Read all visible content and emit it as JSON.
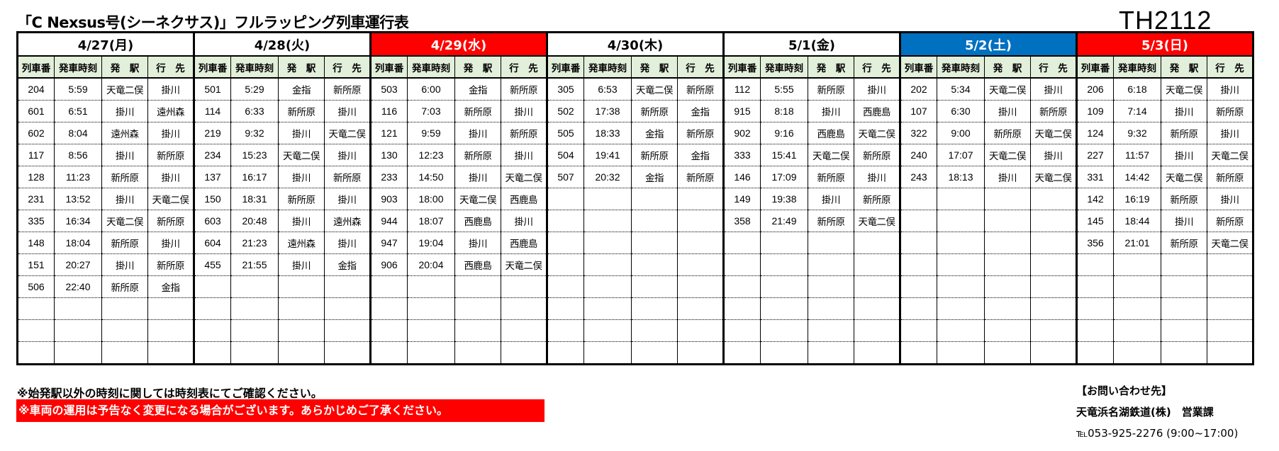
{
  "title": "「C Nexsus号(シーネクサス)」フルラッピング列車運行表",
  "code": "TH2112",
  "columns": [
    "列車番",
    "発車時刻",
    "発　駅",
    "行　先"
  ],
  "days": [
    {
      "label": "4/27(月)",
      "bg": "#ffffff",
      "fg": "#000000",
      "rows": [
        [
          "204",
          "5:59",
          "天竜二俣",
          "掛川"
        ],
        [
          "601",
          "6:51",
          "掛川",
          "遠州森"
        ],
        [
          "602",
          "8:04",
          "遠州森",
          "掛川"
        ],
        [
          "117",
          "8:56",
          "掛川",
          "新所原"
        ],
        [
          "128",
          "11:23",
          "新所原",
          "掛川"
        ],
        [
          "231",
          "13:52",
          "掛川",
          "天竜二俣"
        ],
        [
          "335",
          "16:34",
          "天竜二俣",
          "新所原"
        ],
        [
          "148",
          "18:04",
          "新所原",
          "掛川"
        ],
        [
          "151",
          "20:27",
          "掛川",
          "新所原"
        ],
        [
          "506",
          "22:40",
          "新所原",
          "金指"
        ]
      ]
    },
    {
      "label": "4/28(火)",
      "bg": "#ffffff",
      "fg": "#000000",
      "rows": [
        [
          "501",
          "5:29",
          "金指",
          "新所原"
        ],
        [
          "114",
          "6:33",
          "新所原",
          "掛川"
        ],
        [
          "219",
          "9:32",
          "掛川",
          "天竜二俣"
        ],
        [
          "234",
          "15:23",
          "天竜二俣",
          "掛川"
        ],
        [
          "137",
          "16:17",
          "掛川",
          "新所原"
        ],
        [
          "150",
          "18:31",
          "新所原",
          "掛川"
        ],
        [
          "603",
          "20:48",
          "掛川",
          "遠州森"
        ],
        [
          "604",
          "21:23",
          "遠州森",
          "掛川"
        ],
        [
          "455",
          "21:55",
          "掛川",
          "金指"
        ]
      ]
    },
    {
      "label": "4/29(水)",
      "bg": "#ff0000",
      "fg": "#ffffff",
      "rows": [
        [
          "503",
          "6:00",
          "金指",
          "新所原"
        ],
        [
          "116",
          "7:03",
          "新所原",
          "掛川"
        ],
        [
          "121",
          "9:59",
          "掛川",
          "新所原"
        ],
        [
          "130",
          "12:23",
          "新所原",
          "掛川"
        ],
        [
          "233",
          "14:50",
          "掛川",
          "天竜二俣"
        ],
        [
          "903",
          "18:00",
          "天竜二俣",
          "西鹿島"
        ],
        [
          "944",
          "18:07",
          "西鹿島",
          "掛川"
        ],
        [
          "947",
          "19:04",
          "掛川",
          "西鹿島"
        ],
        [
          "906",
          "20:04",
          "西鹿島",
          "天竜二俣"
        ]
      ]
    },
    {
      "label": "4/30(木)",
      "bg": "#ffffff",
      "fg": "#000000",
      "rows": [
        [
          "305",
          "6:53",
          "天竜二俣",
          "新所原"
        ],
        [
          "502",
          "17:38",
          "新所原",
          "金指"
        ],
        [
          "505",
          "18:33",
          "金指",
          "新所原"
        ],
        [
          "504",
          "19:41",
          "新所原",
          "金指"
        ],
        [
          "507",
          "20:32",
          "金指",
          "新所原"
        ]
      ]
    },
    {
      "label": "5/1(金)",
      "bg": "#ffffff",
      "fg": "#000000",
      "rows": [
        [
          "112",
          "5:55",
          "新所原",
          "掛川"
        ],
        [
          "915",
          "8:18",
          "掛川",
          "西鹿島"
        ],
        [
          "902",
          "9:16",
          "西鹿島",
          "天竜二俣"
        ],
        [
          "333",
          "15:41",
          "天竜二俣",
          "新所原"
        ],
        [
          "146",
          "17:09",
          "新所原",
          "掛川"
        ],
        [
          "149",
          "19:38",
          "掛川",
          "新所原"
        ],
        [
          "358",
          "21:49",
          "新所原",
          "天竜二俣"
        ]
      ]
    },
    {
      "label": "5/2(土)",
      "bg": "#0070c0",
      "fg": "#ffffff",
      "rows": [
        [
          "202",
          "5:34",
          "天竜二俣",
          "掛川"
        ],
        [
          "107",
          "6:30",
          "掛川",
          "新所原"
        ],
        [
          "322",
          "9:00",
          "新所原",
          "天竜二俣"
        ],
        [
          "240",
          "17:07",
          "天竜二俣",
          "掛川"
        ],
        [
          "243",
          "18:13",
          "掛川",
          "天竜二俣"
        ]
      ]
    },
    {
      "label": "5/3(日)",
      "bg": "#ff0000",
      "fg": "#ffffff",
      "rows": [
        [
          "206",
          "6:18",
          "天竜二俣",
          "掛川"
        ],
        [
          "109",
          "7:14",
          "掛川",
          "新所原"
        ],
        [
          "124",
          "9:32",
          "新所原",
          "掛川"
        ],
        [
          "227",
          "11:57",
          "掛川",
          "天竜二俣"
        ],
        [
          "331",
          "14:42",
          "天竜二俣",
          "新所原"
        ],
        [
          "142",
          "16:19",
          "新所原",
          "掛川"
        ],
        [
          "145",
          "18:44",
          "掛川",
          "新所原"
        ],
        [
          "356",
          "21:01",
          "新所原",
          "天竜二俣"
        ]
      ]
    }
  ],
  "notes": {
    "note1": "※始発駅以外の時刻に関しては時刻表にてご確認ください。",
    "note2": "※車両の運用は予告なく変更になる場合がございます。あらかじめご了承ください。"
  },
  "contact": {
    "heading": "【お問い合わせ先】",
    "company": "天竜浜名湖鉄道(株)　営業課",
    "tel": "℡053-925-2276 (9:00~17:00)"
  }
}
